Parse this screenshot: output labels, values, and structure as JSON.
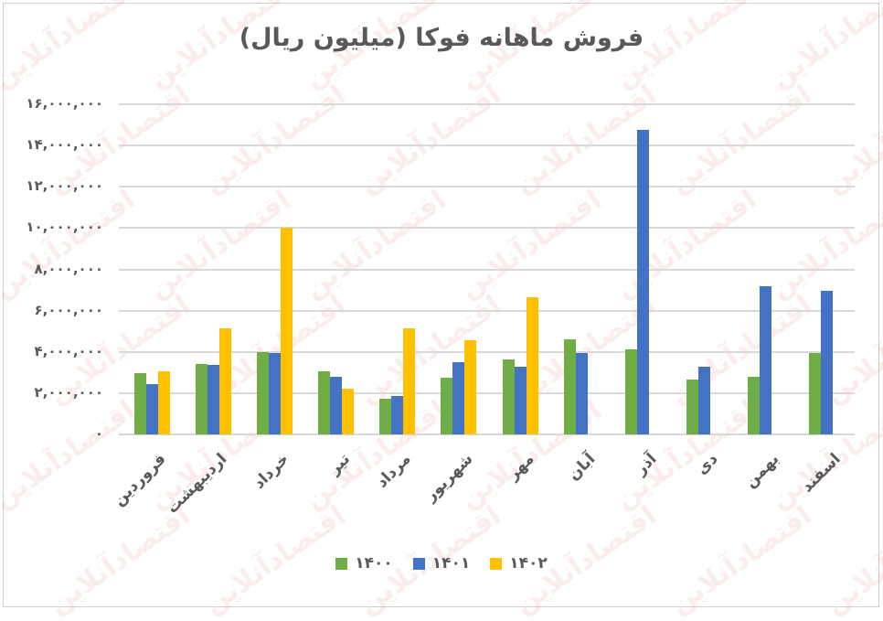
{
  "chart_data": {
    "type": "bar",
    "title": "فروش ماهانه فوکا (میلیون ریال)",
    "xlabel": "",
    "ylabel": "",
    "ylim": [
      0,
      16000000
    ],
    "yticks": [
      "۰",
      "۲,۰۰۰,۰۰۰",
      "۴,۰۰۰,۰۰۰",
      "۶,۰۰۰,۰۰۰",
      "۸,۰۰۰,۰۰۰",
      "۱۰,۰۰۰,۰۰۰",
      "۱۲,۰۰۰,۰۰۰",
      "۱۴,۰۰۰,۰۰۰",
      "۱۶,۰۰۰,۰۰۰"
    ],
    "ytick_values": [
      0,
      2000000,
      4000000,
      6000000,
      8000000,
      10000000,
      12000000,
      14000000,
      16000000
    ],
    "grid": true,
    "legend_position": "bottom",
    "categories": [
      "فروردین",
      "اردیبهشت",
      "خرداد",
      "تیر",
      "مرداد",
      "شهریور",
      "مهر",
      "آبان",
      "آذر",
      "دی",
      "بهمن",
      "اسفند"
    ],
    "series": [
      {
        "name": "۱۴۰۰",
        "color": "#70ad47",
        "values": [
          2980000,
          3420000,
          4000000,
          3070000,
          1730000,
          2760000,
          3640000,
          4620000,
          4130000,
          2670000,
          2800000,
          3960000
        ]
      },
      {
        "name": "۱۴۰۱",
        "color": "#4472c4",
        "values": [
          2440000,
          3380000,
          3960000,
          2800000,
          1870000,
          3510000,
          3290000,
          3960000,
          14760000,
          3290000,
          7200000,
          6980000
        ]
      },
      {
        "name": "۱۴۰۲",
        "color": "#ffc000",
        "values": [
          3070000,
          5160000,
          10000000,
          2220000,
          5160000,
          4580000,
          6670000,
          null,
          null,
          null,
          null,
          null
        ]
      }
    ]
  },
  "watermark": "اقتصادآنلاین"
}
